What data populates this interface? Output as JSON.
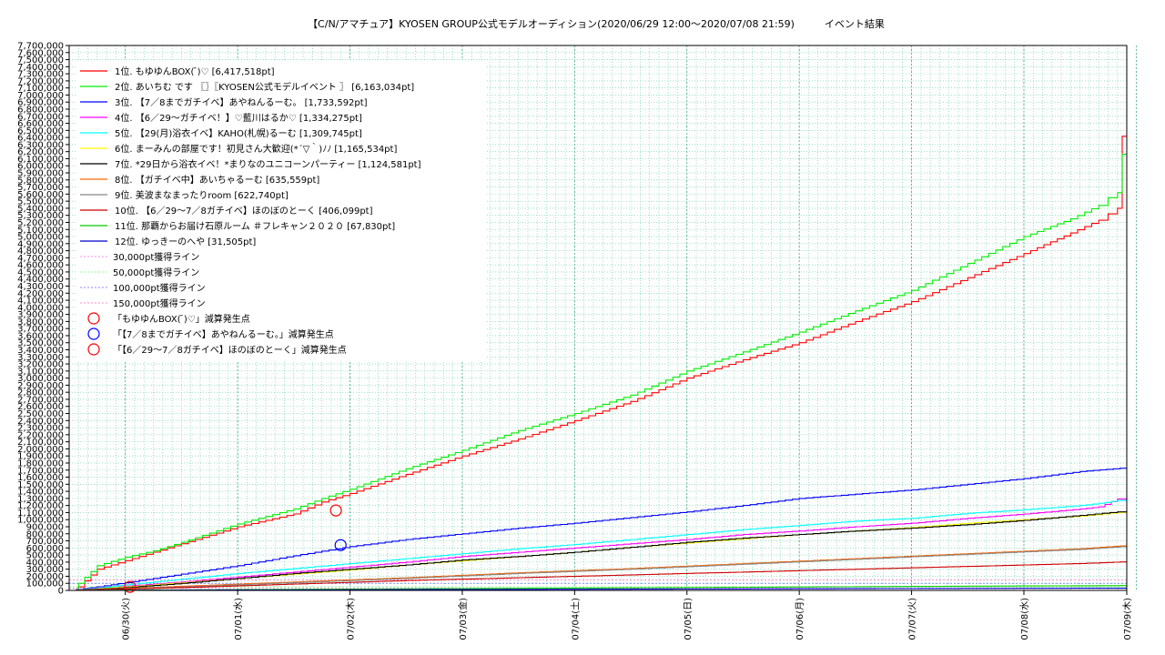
{
  "chart_data": {
    "type": "line",
    "title": "【C/N/アマチュア】KYOSEN GROUP公式モデルオーディション(2020/06/29 12:00〜2020/07/08 21:59)　　　イベント結果",
    "xlabel": "",
    "ylabel": "",
    "ylim": [
      0,
      7700000
    ],
    "xlim": [
      0,
      225.98
    ],
    "x_unit": "hours since 2020/06/29 12:00",
    "x_ticks": [
      {
        "x": 12,
        "label": "06/30(火)"
      },
      {
        "x": 36,
        "label": "07/01(水)"
      },
      {
        "x": 60,
        "label": "07/02(木)"
      },
      {
        "x": 84,
        "label": "07/03(金)"
      },
      {
        "x": 108,
        "label": "07/04(土)"
      },
      {
        "x": 132,
        "label": "07/05(日)"
      },
      {
        "x": 156,
        "label": "07/06(月)"
      },
      {
        "x": 180,
        "label": "07/07(火)"
      },
      {
        "x": 204,
        "label": "07/08(水)"
      },
      {
        "x": 228,
        "label": "07/09(木)"
      }
    ],
    "y_ticks": [
      0,
      100000,
      200000,
      300000,
      400000,
      500000,
      600000,
      700000,
      800000,
      900000,
      1000000,
      1100000,
      1200000,
      1300000,
      1400000,
      1500000,
      1600000,
      1700000,
      1800000,
      1900000,
      2000000,
      2100000,
      2200000,
      2300000,
      2400000,
      2500000,
      2600000,
      2700000,
      2800000,
      2900000,
      3000000,
      3100000,
      3200000,
      3300000,
      3400000,
      3500000,
      3600000,
      3700000,
      3800000,
      3900000,
      4000000,
      4100000,
      4200000,
      4300000,
      4400000,
      4500000,
      4600000,
      4700000,
      4800000,
      4900000,
      5000000,
      5100000,
      5200000,
      5300000,
      5400000,
      5500000,
      5600000,
      5700000,
      5800000,
      5900000,
      6000000,
      6100000,
      6200000,
      6300000,
      6400000,
      6500000,
      6600000,
      6700000,
      6800000,
      6900000,
      7000000,
      7100000,
      7200000,
      7300000,
      7400000,
      7500000,
      7600000,
      7700000
    ],
    "y_tick_labels": [
      "0",
      "100,000",
      "200,000",
      "300,000",
      "400,000",
      "500,000",
      "600,000",
      "700,000",
      "800,000",
      "900,000",
      "1,000,000",
      "1,100,000",
      "1,200,000",
      "1,300,000",
      "1,400,000",
      "1,500,000",
      "1,600,000",
      "1,700,000",
      "1,800,000",
      "1,900,000",
      "2,000,000",
      "2,100,000",
      "2,200,000",
      "2,300,000",
      "2,400,000",
      "2,500,000",
      "2,600,000",
      "2,700,000",
      "2,800,000",
      "2,900,000",
      "3,000,000",
      "3,100,000",
      "3,200,000",
      "3,300,000",
      "3,400,000",
      "3,500,000",
      "3,600,000",
      "3,700,000",
      "3,800,000",
      "3,900,000",
      "4,000,000",
      "4,100,000",
      "4,200,000",
      "4,300,000",
      "4,400,000",
      "4,500,000",
      "4,600,000",
      "4,700,000",
      "4,800,000",
      "4,900,000",
      "5,000,000",
      "5,100,000",
      "5,200,000",
      "5,300,000",
      "5,400,000",
      "5,500,000",
      "5,600,000",
      "5,700,000",
      "5,800,000",
      "5,900,000",
      "6,000,000",
      "6,100,000",
      "6,200,000",
      "6,300,000",
      "6,400,000",
      "6,500,000",
      "6,600,000",
      "6,700,000",
      "6,800,000",
      "6,900,000",
      "7,000,000",
      "7,100,000",
      "7,200,000",
      "7,300,000",
      "7,400,000",
      "7,500,000",
      "7,600,000",
      "7,700,000"
    ],
    "grid": true,
    "legend_position": "top-left",
    "series": [
      {
        "name": "1位. もゆゆんBOX( ̄)♡ [6,417,518pt]",
        "color": "#ff0000",
        "x": [
          0,
          2,
          6,
          12,
          18,
          24,
          36,
          48,
          54,
          60,
          72,
          84,
          96,
          108,
          120,
          132,
          144,
          156,
          168,
          180,
          192,
          204,
          214,
          220,
          222,
          224,
          225,
          225.98
        ],
        "y": [
          0,
          50000,
          300000,
          420000,
          540000,
          660000,
          900000,
          1080000,
          1250000,
          1370000,
          1640000,
          1900000,
          2140000,
          2400000,
          2670000,
          3000000,
          3260000,
          3500000,
          3800000,
          4080000,
          4420000,
          4760000,
          5050000,
          5230000,
          5320000,
          5400000,
          6417518,
          6417518
        ]
      },
      {
        "name": "2位. あいちむ です 〖〗〖KYOSEN公式モデルイベント 〗 [6,163,034pt]",
        "color": "#00ee00",
        "x": [
          0,
          2,
          6,
          12,
          18,
          24,
          36,
          48,
          54,
          60,
          72,
          84,
          96,
          108,
          120,
          132,
          144,
          156,
          168,
          180,
          192,
          204,
          214,
          220,
          222,
          224,
          225,
          225.98
        ],
        "y": [
          0,
          100000,
          350000,
          470000,
          560000,
          680000,
          940000,
          1150000,
          1300000,
          1430000,
          1720000,
          1980000,
          2260000,
          2500000,
          2760000,
          3100000,
          3370000,
          3650000,
          3950000,
          4240000,
          4620000,
          5000000,
          5250000,
          5440000,
          5550000,
          5620000,
          6163034,
          6163034
        ]
      },
      {
        "name": "3位. 【7／8までガチイベ】あやねんるーむ。 [1,733,592pt]",
        "color": "#0000ff",
        "x": [
          0,
          6,
          12,
          24,
          36,
          48,
          60,
          72,
          84,
          96,
          108,
          120,
          132,
          144,
          156,
          168,
          180,
          192,
          204,
          216,
          225.98
        ],
        "y": [
          0,
          50000,
          110000,
          230000,
          350000,
          490000,
          620000,
          720000,
          800000,
          880000,
          950000,
          1030000,
          1110000,
          1200000,
          1300000,
          1360000,
          1420000,
          1500000,
          1580000,
          1680000,
          1733592
        ]
      },
      {
        "name": "4位. 【6／29〜ガチイベ！】♡藍川はるか♡ [1,334,275pt]",
        "color": "#ff00ff",
        "x": [
          0,
          6,
          12,
          24,
          36,
          48,
          60,
          72,
          84,
          96,
          108,
          120,
          132,
          144,
          156,
          168,
          180,
          192,
          204,
          216,
          220,
          224,
          225.98
        ],
        "y": [
          0,
          20000,
          60000,
          120000,
          190000,
          260000,
          330000,
          400000,
          480000,
          540000,
          600000,
          660000,
          720000,
          790000,
          840000,
          900000,
          950000,
          1020000,
          1080000,
          1150000,
          1180000,
          1290000,
          1334275
        ]
      },
      {
        "name": "5位. 【29(月)浴衣イベ】KAHO(札幌)るーむ [1,309,745pt]",
        "color": "#00ffff",
        "x": [
          0,
          6,
          12,
          24,
          36,
          48,
          60,
          72,
          84,
          96,
          108,
          120,
          132,
          144,
          156,
          168,
          180,
          192,
          204,
          216,
          220,
          224,
          225.98
        ],
        "y": [
          0,
          30000,
          80000,
          160000,
          240000,
          310000,
          380000,
          450000,
          520000,
          590000,
          650000,
          720000,
          790000,
          860000,
          920000,
          980000,
          1020000,
          1090000,
          1140000,
          1200000,
          1230000,
          1270000,
          1309745
        ]
      },
      {
        "name": "6位. まーみんの部屋です！初見さん大歓迎(*´▽｀)ﾉﾉ [1,165,534pt]",
        "color": "#ffff00",
        "x": [
          0,
          12,
          24,
          36,
          48,
          60,
          72,
          84,
          96,
          108,
          120,
          132,
          144,
          156,
          168,
          180,
          192,
          204,
          216,
          224,
          225.98
        ],
        "y": [
          0,
          50000,
          110000,
          170000,
          230000,
          290000,
          360000,
          420000,
          480000,
          540000,
          610000,
          670000,
          730000,
          790000,
          840000,
          890000,
          950000,
          1000000,
          1050000,
          1100000,
          1165534
        ]
      },
      {
        "name": "7位. *29日から浴衣イベ！*まりなのユニコーンパーティー [1,124,581pt]",
        "color": "#000000",
        "x": [
          0,
          12,
          24,
          36,
          48,
          60,
          72,
          84,
          96,
          108,
          120,
          132,
          144,
          156,
          168,
          180,
          192,
          204,
          216,
          224,
          225.98
        ],
        "y": [
          0,
          40000,
          100000,
          170000,
          240000,
          300000,
          360000,
          430000,
          480000,
          540000,
          610000,
          680000,
          740000,
          790000,
          840000,
          880000,
          930000,
          990000,
          1060000,
          1110000,
          1124581
        ]
      },
      {
        "name": "8位. 【ガチイベ中】あいちゃるーむ [635,559pt]",
        "color": "#ff6600",
        "x": [
          0,
          24,
          48,
          72,
          96,
          120,
          144,
          168,
          192,
          216,
          225.98
        ],
        "y": [
          0,
          60000,
          120000,
          180000,
          250000,
          310000,
          380000,
          450000,
          520000,
          590000,
          635559
        ]
      },
      {
        "name": "9位. 美波まなまったりroom [622,740pt]",
        "color": "#888888",
        "x": [
          0,
          24,
          48,
          72,
          96,
          120,
          144,
          168,
          192,
          216,
          225.98
        ],
        "y": [
          0,
          50000,
          110000,
          170000,
          240000,
          300000,
          370000,
          440000,
          510000,
          580000,
          622740
        ]
      },
      {
        "name": "10位. 【6／29〜7／8ガチイベ】ほのぼのとーく [406,099pt]",
        "color": "#cc0000",
        "x": [
          0,
          24,
          48,
          72,
          96,
          120,
          144,
          168,
          192,
          216,
          225.98
        ],
        "y": [
          0,
          40000,
          90000,
          140000,
          180000,
          220000,
          260000,
          300000,
          340000,
          380000,
          406099
        ]
      },
      {
        "name": "11位. 那覇からお届け石原ルーム ＃フレキャン２０２０ [67,830pt]",
        "color": "#00cc00",
        "x": [
          0,
          48,
          96,
          144,
          192,
          225.98
        ],
        "y": [
          0,
          15000,
          30000,
          45000,
          60000,
          67830
        ]
      },
      {
        "name": "12位. ゆっきーのへや [31,505pt]",
        "color": "#0000cc",
        "x": [
          0,
          48,
          96,
          144,
          192,
          225.98
        ],
        "y": [
          0,
          7000,
          14000,
          21000,
          28000,
          31505
        ]
      }
    ],
    "reference_lines": [
      {
        "name": "30,000pt獲得ライン",
        "color": "#ff88ff",
        "y": 30000
      },
      {
        "name": "50,000pt獲得ライン",
        "color": "#88ff88",
        "y": 50000
      },
      {
        "name": "100,000pt獲得ライン",
        "color": "#8888ff",
        "y": 100000
      },
      {
        "name": "150,000pt獲得ライン",
        "color": "#ff88cc",
        "y": 150000
      }
    ],
    "markers": [
      {
        "name": "「もゆゆんBOX( ̄)♡」減算発生点",
        "color": "#ff0000",
        "points": [
          {
            "x": 57,
            "y": 1130000
          }
        ]
      },
      {
        "name": "「【7／8までガチイベ】あやねんるーむ。」減算発生点",
        "color": "#0000ff",
        "points": [
          {
            "x": 58,
            "y": 640000
          }
        ]
      },
      {
        "name": "「【6／29〜7／8ガチイベ】ほのぼのとーく」減算発生点",
        "color": "#ff0000",
        "points": [
          {
            "x": 13,
            "y": 50000
          }
        ]
      }
    ]
  }
}
